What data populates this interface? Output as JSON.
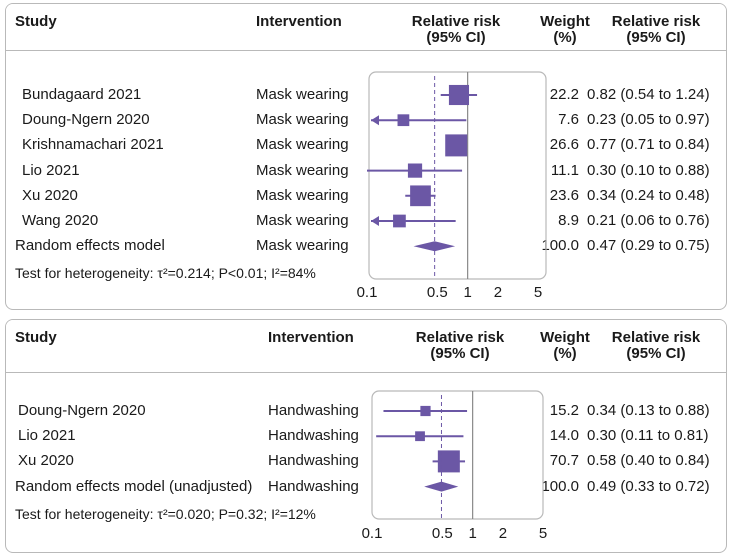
{
  "chart_data": [
    {
      "type": "forest",
      "scale": "log",
      "xlim": [
        0.1,
        5
      ],
      "xticks": [
        "0.1",
        "0.5",
        "1",
        "2",
        "5"
      ],
      "reference_line": 1,
      "header": {
        "study": "Study",
        "intervention": "Intervention",
        "rr_line1": "Relative risk",
        "rr_line2": "(95% CI)",
        "weight_line1": "Weight",
        "weight_line2": "(%)",
        "rrtext_line1": "Relative risk",
        "rrtext_line2": "(95% CI)"
      },
      "studies": [
        {
          "study": "Bundagaard 2021",
          "intervention": "Mask wearing",
          "weight": "22.2",
          "rr": 0.82,
          "lo": 0.54,
          "hi": 1.24,
          "ci_text": "0.82 (0.54 to 1.24)"
        },
        {
          "study": "Doung-Ngern 2020",
          "intervention": "Mask wearing",
          "weight": "7.6",
          "rr": 0.23,
          "lo": 0.05,
          "hi": 0.97,
          "ci_text": "0.23 (0.05 to 0.97)"
        },
        {
          "study": "Krishnamachari 2021",
          "intervention": "Mask wearing",
          "weight": "26.6",
          "rr": 0.77,
          "lo": 0.71,
          "hi": 0.84,
          "ci_text": "0.77 (0.71 to 0.84)"
        },
        {
          "study": "Lio 2021",
          "intervention": "Mask wearing",
          "weight": "11.1",
          "rr": 0.3,
          "lo": 0.1,
          "hi": 0.88,
          "ci_text": "0.30 (0.10 to 0.88)"
        },
        {
          "study": "Xu 2020",
          "intervention": "Mask wearing",
          "weight": "23.6",
          "rr": 0.34,
          "lo": 0.24,
          "hi": 0.48,
          "ci_text": "0.34 (0.24 to 0.48)"
        },
        {
          "study": "Wang 2020",
          "intervention": "Mask wearing",
          "weight": "8.9",
          "rr": 0.21,
          "lo": 0.06,
          "hi": 0.76,
          "ci_text": "0.21 (0.06 to 0.76)"
        }
      ],
      "summary": {
        "study": "Random effects model",
        "intervention": "Mask wearing",
        "weight": "100.0",
        "rr": 0.47,
        "lo": 0.29,
        "hi": 0.75,
        "ci_text": "0.47 (0.29 to 0.75)"
      },
      "heterogeneity": "Test for heterogeneity: τ²=0.214; P<0.01; I²=84%"
    },
    {
      "type": "forest",
      "scale": "log",
      "xlim": [
        0.1,
        5
      ],
      "xticks": [
        "0.1",
        "0.5",
        "1",
        "2",
        "5"
      ],
      "reference_line": 1,
      "header": {
        "study": "Study",
        "intervention": "Intervention",
        "rr_line1": "Relative risk",
        "rr_line2": "(95% CI)",
        "weight_line1": "Weight",
        "weight_line2": "(%)",
        "rrtext_line1": "Relative risk",
        "rrtext_line2": "(95% CI)"
      },
      "studies": [
        {
          "study": "Doung-Ngern 2020",
          "intervention": "Handwashing",
          "weight": "15.2",
          "rr": 0.34,
          "lo": 0.13,
          "hi": 0.88,
          "ci_text": "0.34 (0.13 to 0.88)"
        },
        {
          "study": "Lio 2021",
          "intervention": "Handwashing",
          "weight": "14.0",
          "rr": 0.3,
          "lo": 0.11,
          "hi": 0.81,
          "ci_text": "0.30 (0.11 to 0.81)"
        },
        {
          "study": "Xu 2020",
          "intervention": "Handwashing",
          "weight": "70.7",
          "rr": 0.58,
          "lo": 0.4,
          "hi": 0.84,
          "ci_text": "0.58 (0.40 to 0.84)"
        }
      ],
      "summary": {
        "study": "Random effects model (unadjusted)",
        "intervention": "Handwashing",
        "weight": "100.0",
        "rr": 0.49,
        "lo": 0.33,
        "hi": 0.72,
        "ci_text": "0.49 (0.33 to 0.72)"
      },
      "heterogeneity": "Test for heterogeneity: τ²=0.020; P=0.32; I²=12%"
    }
  ],
  "colors": {
    "marker": "#6b57a5",
    "border": "#b9b9b9",
    "reference": "#888888"
  }
}
